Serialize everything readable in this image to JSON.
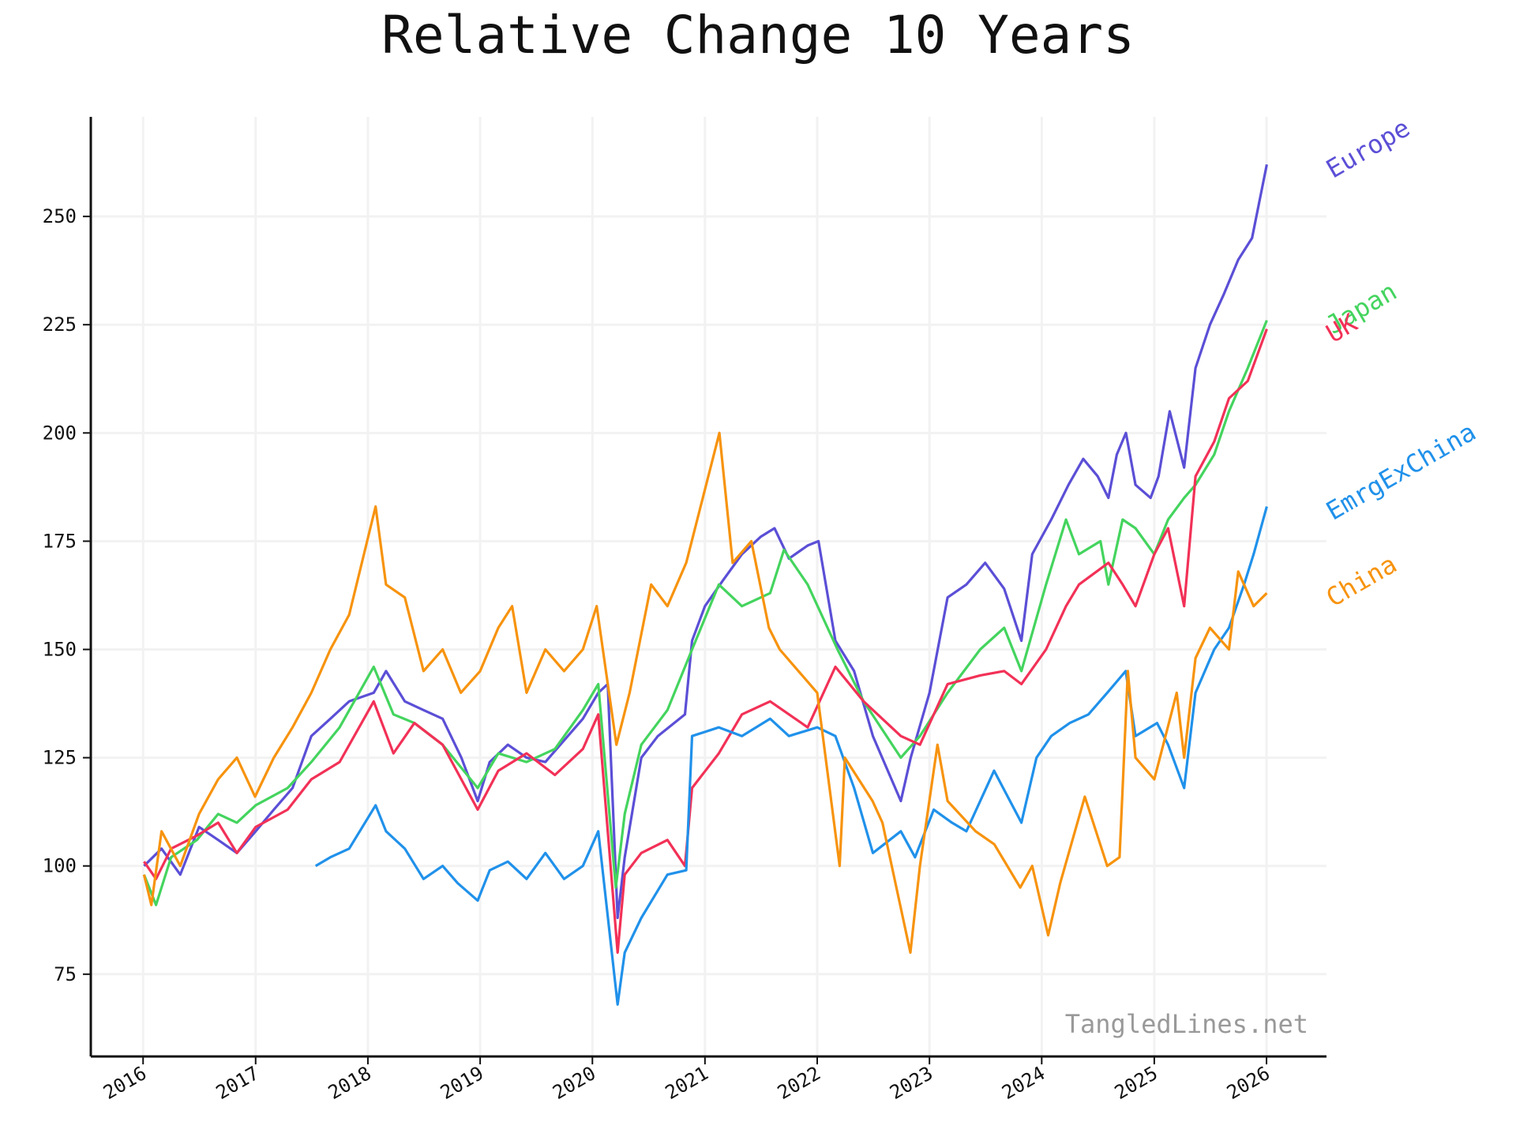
{
  "chart_data": {
    "type": "line",
    "title": "Relative Change 10 Years",
    "xlabel": "",
    "ylabel": "",
    "ylim": [
      56,
      273
    ],
    "xlim": [
      "2015-07-15",
      "2026-07-15"
    ],
    "grid": true,
    "legend": "none",
    "watermark": "TangledLines.net",
    "x_ticks": [
      "2016",
      "2017",
      "2018",
      "2019",
      "2020",
      "2021",
      "2022",
      "2023",
      "2024",
      "2025",
      "2026"
    ],
    "y_ticks": [
      75,
      100,
      125,
      150,
      175,
      200,
      225,
      250
    ],
    "series": [
      {
        "name": "Europe",
        "color": "#5b4fd6",
        "x": [
          "2016-01-04",
          "2016-03-01",
          "2016-05-01",
          "2016-07-01",
          "2016-09-01",
          "2016-11-01",
          "2017-01-01",
          "2017-03-01",
          "2017-05-01",
          "2017-07-01",
          "2017-09-01",
          "2017-11-01",
          "2018-01-20",
          "2018-03-01",
          "2018-05-01",
          "2018-07-01",
          "2018-09-01",
          "2018-11-01",
          "2018-12-24",
          "2019-02-01",
          "2019-04-01",
          "2019-06-01",
          "2019-08-01",
          "2019-10-01",
          "2019-12-01",
          "2020-01-20",
          "2020-02-20",
          "2020-03-23",
          "2020-04-15",
          "2020-06-08",
          "2020-08-01",
          "2020-10-28",
          "2020-11-20",
          "2021-01-01",
          "2021-03-01",
          "2021-05-01",
          "2021-07-01",
          "2021-08-15",
          "2021-10-01",
          "2021-12-01",
          "2022-01-05",
          "2022-03-01",
          "2022-05-01",
          "2022-07-01",
          "2022-09-30",
          "2022-11-01",
          "2023-01-01",
          "2023-03-01",
          "2023-05-01",
          "2023-07-01",
          "2023-09-01",
          "2023-10-27",
          "2023-12-01",
          "2024-02-01",
          "2024-03-28",
          "2024-05-15",
          "2024-07-01",
          "2024-08-05",
          "2024-09-01",
          "2024-10-01",
          "2024-11-01",
          "2024-12-20",
          "2025-01-15",
          "2025-02-20",
          "2025-04-08",
          "2025-05-15",
          "2025-07-01",
          "2025-08-15",
          "2025-10-01",
          "2025-11-15",
          "2026-01-02"
        ],
        "values": [
          100,
          104,
          98,
          109,
          106,
          103,
          108,
          113,
          118,
          130,
          134,
          138,
          140,
          145,
          138,
          136,
          134,
          125,
          115,
          124,
          128,
          125,
          124,
          129,
          134,
          140,
          142,
          88,
          102,
          125,
          130,
          135,
          152,
          160,
          166,
          172,
          176,
          178,
          171,
          174,
          175,
          152,
          145,
          130,
          115,
          125,
          140,
          162,
          165,
          170,
          164,
          152,
          172,
          180,
          188,
          194,
          190,
          185,
          195,
          200,
          188,
          185,
          190,
          205,
          192,
          215,
          225,
          232,
          240,
          245,
          262
        ]
      },
      {
        "name": "Japan",
        "color": "#44d45e",
        "x": [
          "2016-01-04",
          "2016-02-12",
          "2016-04-01",
          "2016-06-24",
          "2016-09-01",
          "2016-11-01",
          "2017-01-01",
          "2017-04-15",
          "2017-07-01",
          "2017-10-01",
          "2018-01-20",
          "2018-03-25",
          "2018-06-01",
          "2018-09-01",
          "2018-12-24",
          "2019-03-01",
          "2019-06-01",
          "2019-09-01",
          "2019-12-01",
          "2020-01-20",
          "2020-03-17",
          "2020-04-15",
          "2020-06-08",
          "2020-09-01",
          "2020-11-20",
          "2021-02-15",
          "2021-05-01",
          "2021-08-01",
          "2021-09-15",
          "2021-12-01",
          "2022-03-08",
          "2022-06-01",
          "2022-09-30",
          "2022-12-01",
          "2023-03-01",
          "2023-06-15",
          "2023-09-01",
          "2023-10-27",
          "2024-01-15",
          "2024-03-20",
          "2024-05-01",
          "2024-07-10",
          "2024-08-05",
          "2024-09-20",
          "2024-11-01",
          "2025-01-01",
          "2025-02-15",
          "2025-04-08",
          "2025-05-15",
          "2025-07-15",
          "2025-09-01",
          "2025-11-01",
          "2026-01-02"
        ],
        "values": [
          98,
          91,
          102,
          106,
          112,
          110,
          114,
          118,
          124,
          132,
          146,
          135,
          133,
          128,
          118,
          126,
          124,
          127,
          136,
          142,
          95,
          112,
          128,
          136,
          150,
          165,
          160,
          163,
          173,
          165,
          150,
          138,
          125,
          130,
          140,
          150,
          155,
          145,
          165,
          180,
          172,
          175,
          165,
          180,
          178,
          172,
          180,
          185,
          188,
          195,
          205,
          215,
          226
        ]
      },
      {
        "name": "UK",
        "color": "#f23157",
        "x": [
          "2016-01-04",
          "2016-02-12",
          "2016-04-01",
          "2016-06-24",
          "2016-09-01",
          "2016-11-01",
          "2017-01-01",
          "2017-04-15",
          "2017-07-01",
          "2017-10-01",
          "2018-01-20",
          "2018-03-25",
          "2018-06-01",
          "2018-09-01",
          "2018-12-24",
          "2019-03-01",
          "2019-06-01",
          "2019-09-01",
          "2019-12-01",
          "2020-01-20",
          "2020-03-23",
          "2020-04-15",
          "2020-06-08",
          "2020-09-01",
          "2020-10-28",
          "2020-11-20",
          "2021-02-15",
          "2021-05-01",
          "2021-08-01",
          "2021-12-01",
          "2022-03-01",
          "2022-06-01",
          "2022-09-30",
          "2022-12-01",
          "2023-03-01",
          "2023-06-15",
          "2023-09-01",
          "2023-10-27",
          "2024-01-15",
          "2024-03-20",
          "2024-05-01",
          "2024-08-05",
          "2024-09-20",
          "2024-11-01",
          "2025-01-01",
          "2025-02-15",
          "2025-04-08",
          "2025-05-15",
          "2025-07-15",
          "2025-09-01",
          "2025-11-01",
          "2026-01-02"
        ],
        "values": [
          101,
          97,
          104,
          107,
          110,
          103,
          109,
          113,
          120,
          124,
          138,
          126,
          133,
          128,
          113,
          122,
          126,
          121,
          127,
          135,
          80,
          98,
          103,
          106,
          100,
          118,
          126,
          135,
          138,
          132,
          146,
          138,
          130,
          128,
          142,
          144,
          145,
          142,
          150,
          160,
          165,
          170,
          165,
          160,
          172,
          178,
          160,
          190,
          198,
          208,
          212,
          224
        ]
      },
      {
        "name": "EmrgExChina",
        "color": "#2091ea",
        "x": [
          "2017-07-15",
          "2017-09-01",
          "2017-11-01",
          "2018-01-26",
          "2018-03-01",
          "2018-05-01",
          "2018-07-01",
          "2018-09-01",
          "2018-10-20",
          "2018-12-24",
          "2019-02-01",
          "2019-04-01",
          "2019-06-01",
          "2019-08-01",
          "2019-10-01",
          "2019-12-01",
          "2020-01-20",
          "2020-03-23",
          "2020-04-15",
          "2020-06-08",
          "2020-09-01",
          "2020-11-01",
          "2020-11-20",
          "2021-02-15",
          "2021-05-01",
          "2021-08-01",
          "2021-10-01",
          "2022-01-01",
          "2022-03-01",
          "2022-05-01",
          "2022-07-01",
          "2022-09-30",
          "2022-11-15",
          "2023-01-15",
          "2023-03-15",
          "2023-05-01",
          "2023-07-30",
          "2023-10-27",
          "2023-12-15",
          "2024-02-01",
          "2024-04-01",
          "2024-06-01",
          "2024-08-01",
          "2024-09-30",
          "2024-11-01",
          "2025-01-10",
          "2025-02-15",
          "2025-04-08",
          "2025-05-15",
          "2025-07-15",
          "2025-09-01",
          "2025-10-20",
          "2025-11-20",
          "2026-01-02"
        ],
        "values": [
          100,
          102,
          104,
          114,
          108,
          104,
          97,
          100,
          96,
          92,
          99,
          101,
          97,
          103,
          97,
          100,
          108,
          68,
          80,
          88,
          98,
          99,
          130,
          132,
          130,
          134,
          130,
          132,
          130,
          118,
          103,
          108,
          102,
          113,
          110,
          108,
          122,
          110,
          125,
          130,
          133,
          135,
          140,
          145,
          130,
          133,
          128,
          118,
          140,
          150,
          155,
          165,
          172,
          183
        ]
      },
      {
        "name": "China",
        "color": "#f7930e",
        "x": [
          "2016-01-04",
          "2016-01-28",
          "2016-03-01",
          "2016-05-01",
          "2016-07-01",
          "2016-09-01",
          "2016-11-01",
          "2016-12-30",
          "2017-03-01",
          "2017-05-01",
          "2017-07-01",
          "2017-09-01",
          "2017-11-01",
          "2018-01-26",
          "2018-03-01",
          "2018-05-01",
          "2018-07-01",
          "2018-09-01",
          "2018-10-30",
          "2019-01-01",
          "2019-03-01",
          "2019-04-15",
          "2019-06-01",
          "2019-08-01",
          "2019-10-01",
          "2019-12-01",
          "2020-01-15",
          "2020-03-19",
          "2020-05-01",
          "2020-07-10",
          "2020-09-01",
          "2020-11-01",
          "2021-02-17",
          "2021-04-01",
          "2021-06-01",
          "2021-07-28",
          "2021-09-01",
          "2021-11-01",
          "2022-01-01",
          "2022-03-15",
          "2022-04-01",
          "2022-06-30",
          "2022-08-01",
          "2022-10-31",
          "2022-12-01",
          "2023-01-27",
          "2023-03-01",
          "2023-05-31",
          "2023-07-31",
          "2023-10-23",
          "2023-12-01",
          "2024-01-22",
          "2024-03-01",
          "2024-05-20",
          "2024-08-01",
          "2024-09-10",
          "2024-10-07",
          "2024-11-01",
          "2025-01-01",
          "2025-03-15",
          "2025-04-08",
          "2025-05-15",
          "2025-07-01",
          "2025-09-01",
          "2025-10-01",
          "2025-11-20",
          "2026-01-02"
        ],
        "values": [
          98,
          91,
          108,
          100,
          112,
          120,
          125,
          116,
          125,
          132,
          140,
          150,
          158,
          183,
          165,
          162,
          145,
          150,
          140,
          145,
          155,
          160,
          140,
          150,
          145,
          150,
          160,
          128,
          140,
          165,
          160,
          170,
          200,
          170,
          175,
          155,
          150,
          145,
          140,
          100,
          125,
          115,
          110,
          80,
          100,
          128,
          115,
          108,
          105,
          95,
          100,
          84,
          96,
          116,
          100,
          102,
          145,
          125,
          120,
          140,
          125,
          148,
          155,
          150,
          168,
          160,
          163
        ]
      }
    ]
  }
}
